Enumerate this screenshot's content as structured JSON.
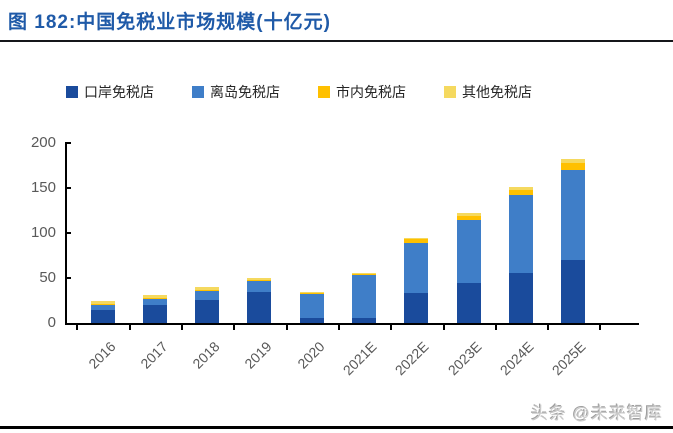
{
  "header": {
    "title": "图 182:中国免税业市场规模(十亿元)"
  },
  "watermark": "头条 @未来智库",
  "colors": {
    "title_blue": "#1f5aa8",
    "axis_black": "#000000",
    "label_gray": "#595959"
  },
  "chart_data": {
    "type": "bar",
    "stacked": true,
    "title": "中国免税业市场规模(十亿元)",
    "xlabel": "",
    "ylabel": "",
    "ylim": [
      0,
      200
    ],
    "yticks": [
      0,
      50,
      100,
      150,
      200
    ],
    "grid": false,
    "legend_position": "top",
    "categories": [
      "2016",
      "2017",
      "2018",
      "2019",
      "2020",
      "2021E",
      "2022E",
      "2023E",
      "2024E",
      "2025E"
    ],
    "series": [
      {
        "name": "口岸免税店",
        "color": "#1a4b9c",
        "values": [
          15,
          19.5,
          26,
          34,
          5.5,
          6,
          33,
          45,
          56,
          70
        ]
      },
      {
        "name": "离岛免税店",
        "color": "#3f7ec8",
        "values": [
          6,
          8,
          10,
          13,
          27.5,
          47,
          56,
          69,
          86,
          100
        ]
      },
      {
        "name": "市内免税店",
        "color": "#ffc000",
        "values": [
          0.5,
          0.5,
          0.5,
          0.5,
          0.5,
          1,
          4,
          5,
          6,
          8
        ]
      },
      {
        "name": "其他免税店",
        "color": "#f5d95f",
        "values": [
          2.5,
          3,
          3,
          3,
          1.5,
          1.5,
          2,
          3,
          3,
          4
        ]
      }
    ],
    "totals": [
      24,
      31,
      39.5,
      50.5,
      35,
      55.5,
      95,
      122,
      151,
      182
    ]
  }
}
